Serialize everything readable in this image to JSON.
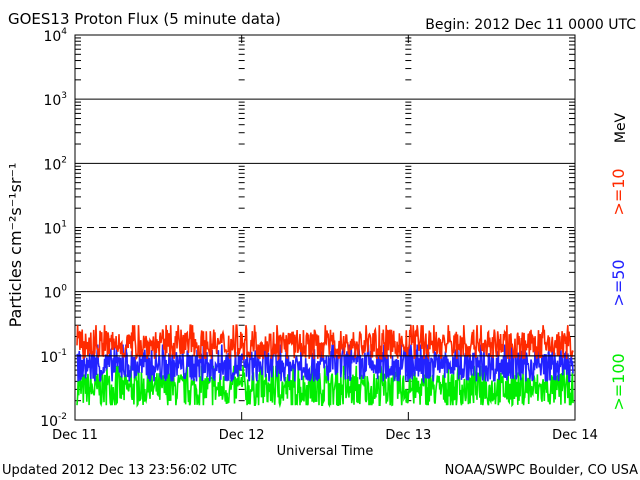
{
  "header": {
    "title": "GOES13 Proton Flux (5 minute data)",
    "begin": "Begin: 2012 Dec 11 0000 UTC"
  },
  "footer": {
    "updated": "Updated 2012 Dec 13 23:56:02 UTC",
    "source": "NOAA/SWPC Boulder, CO USA"
  },
  "chart_data": {
    "type": "line",
    "title": "GOES13 Proton Flux (5 minute data)",
    "xlabel": "Universal Time",
    "ylabel": "Particles cm⁻²s⁻¹sr⁻¹",
    "yscale": "log",
    "ylim": [
      0.01,
      10000
    ],
    "xlim": [
      "2012-12-11",
      "2012-12-14"
    ],
    "x_ticks": [
      "Dec 11",
      "Dec 12",
      "Dec 13",
      "Dec 14"
    ],
    "y_ticks": [
      {
        "base": "10",
        "exp": "4"
      },
      {
        "base": "10",
        "exp": "3"
      },
      {
        "base": "10",
        "exp": "2"
      },
      {
        "base": "10",
        "exp": "1"
      },
      {
        "base": "10",
        "exp": "0"
      },
      {
        "base": "10",
        "exp": "-1"
      },
      {
        "base": "10",
        "exp": "-2"
      }
    ],
    "legend_unit": "MeV",
    "series": [
      {
        "name": ">=10",
        "color": "#ff2a00",
        "typical_value": 0.15,
        "range": [
          0.09,
          0.3
        ]
      },
      {
        "name": ">=50",
        "color": "#2222ff",
        "typical_value": 0.07,
        "range": [
          0.04,
          0.15
        ]
      },
      {
        "name": ">=100",
        "color": "#00ee00",
        "typical_value": 0.03,
        "range": [
          0.017,
          0.07
        ]
      }
    ],
    "reference_lines": [
      {
        "value": 10,
        "style": "dashed"
      },
      {
        "value": 0.1,
        "style": "solid"
      }
    ]
  }
}
